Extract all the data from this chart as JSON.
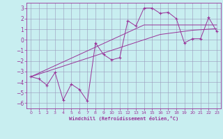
{
  "xlabel": "Windchill (Refroidissement éolien,°C)",
  "x_values": [
    0,
    1,
    2,
    3,
    4,
    5,
    6,
    7,
    8,
    9,
    10,
    11,
    12,
    13,
    14,
    15,
    16,
    17,
    18,
    19,
    20,
    21,
    22,
    23
  ],
  "y_main": [
    -3.5,
    -3.7,
    -4.3,
    -3.1,
    -5.7,
    -4.2,
    -4.7,
    -5.8,
    -0.3,
    -1.4,
    -1.9,
    -1.7,
    1.8,
    1.3,
    3.0,
    3.0,
    2.5,
    2.6,
    2.0,
    -0.3,
    0.1,
    0.1,
    2.1,
    0.8
  ],
  "y_line1": [
    -3.5,
    -3.15,
    -2.8,
    -2.45,
    -2.1,
    -1.75,
    -1.4,
    -1.05,
    -0.7,
    -0.35,
    0.0,
    0.35,
    0.7,
    1.05,
    1.4,
    1.4,
    1.4,
    1.4,
    1.4,
    1.4,
    1.4,
    1.4,
    1.4,
    1.4
  ],
  "y_line2": [
    -3.5,
    -3.25,
    -3.0,
    -2.75,
    -2.5,
    -2.25,
    -2.0,
    -1.75,
    -1.5,
    -1.25,
    -1.0,
    -0.75,
    -0.5,
    -0.25,
    0.0,
    0.25,
    0.5,
    0.6,
    0.7,
    0.8,
    0.9,
    0.95,
    1.0,
    1.05
  ],
  "bg_color": "#c8eef0",
  "line_color": "#993399",
  "grid_color": "#9999bb",
  "ylim": [
    -6.5,
    3.5
  ],
  "yticks": [
    -6,
    -5,
    -4,
    -3,
    -2,
    -1,
    0,
    1,
    2,
    3
  ],
  "xlim": [
    -0.5,
    23.5
  ],
  "xticks": [
    0,
    1,
    2,
    3,
    4,
    5,
    6,
    7,
    8,
    9,
    10,
    11,
    12,
    13,
    14,
    15,
    16,
    17,
    18,
    19,
    20,
    21,
    22,
    23
  ]
}
